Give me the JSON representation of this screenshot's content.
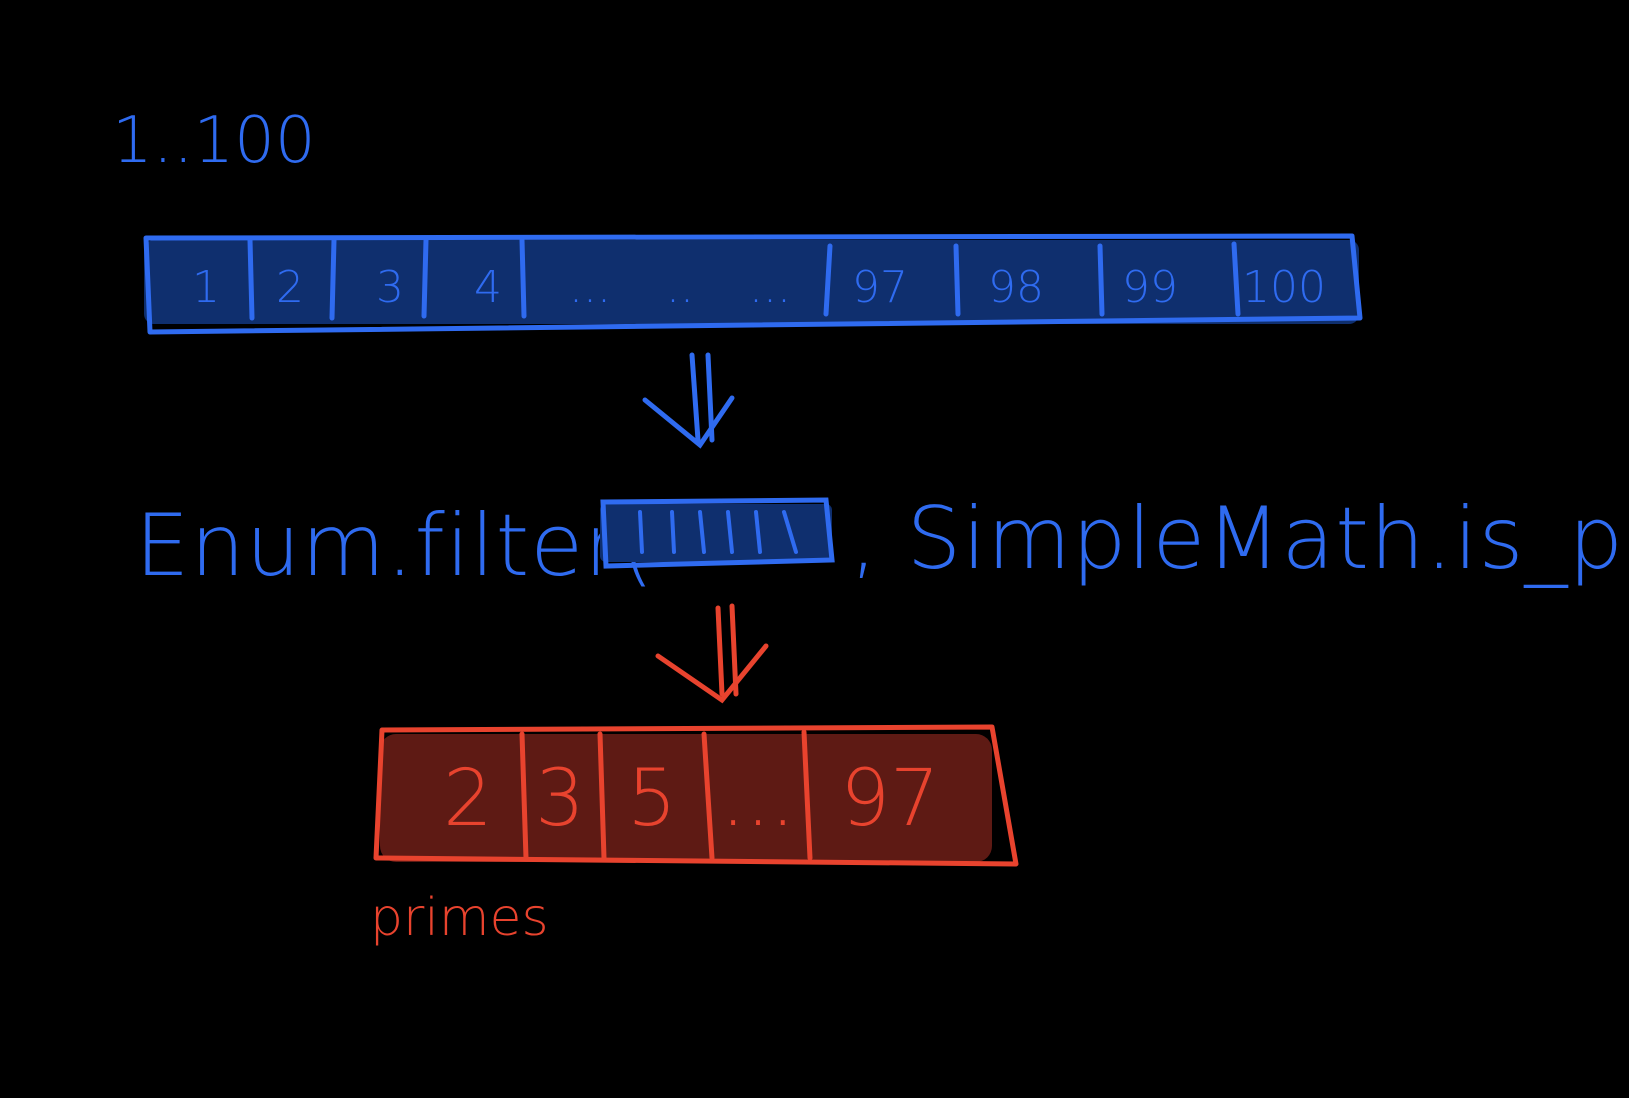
{
  "range_label": "1..100",
  "input_list": {
    "cells": [
      "1",
      "2",
      "3",
      "4",
      "...",
      "..",
      "...",
      "97",
      "98",
      "99",
      "100"
    ]
  },
  "filter_call": {
    "prefix": "Enum.filter(",
    "suffix": ", SimpleMath.is_prime?)"
  },
  "output_list": {
    "cells": [
      "2",
      "3",
      "5",
      "...",
      "97"
    ]
  },
  "output_label": "primes",
  "colors": {
    "background": "#000000",
    "blue_stroke": "#2F6BF0",
    "blue_fill": "#0F2F6E",
    "red_stroke": "#E8432E",
    "red_fill": "#5E1A14"
  }
}
